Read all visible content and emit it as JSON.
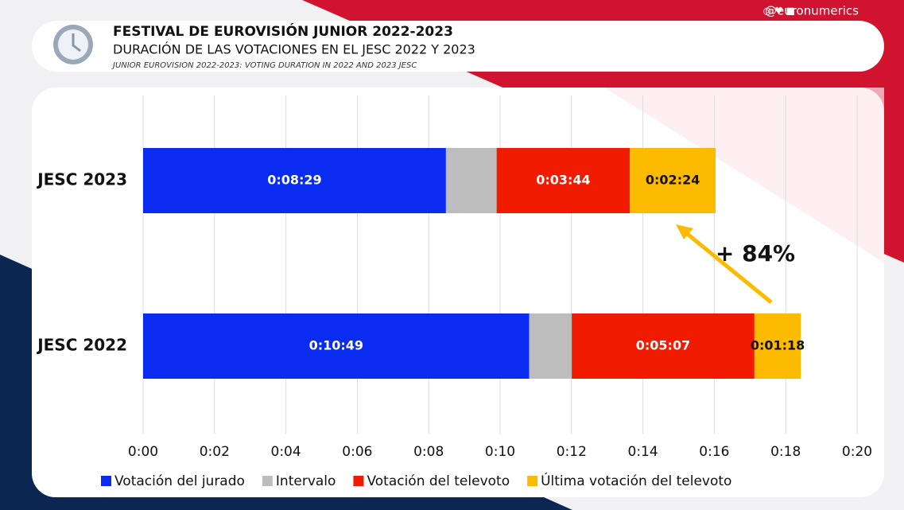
{
  "chart_data": {
    "type": "stacked_barh",
    "title": "FESTIVAL DE EUROVISIÓN JUNIOR 2022-2023",
    "subtitle": "DURACIÓN DE LAS VOTACIONES EN EL JESC 2022 Y 2023",
    "note": "JUNIOR EUROVISION 2022-2023: VOTING DURATION IN 2022 AND 2023 JESC",
    "handle": "@euronumerics",
    "annotation": "+ 84%",
    "categories": [
      "JESC 2023",
      "JESC 2022"
    ],
    "series": [
      {
        "name": "Votación del jurado",
        "color": "#0a2cf0",
        "values": [
          8.483,
          10.817
        ],
        "value_labels": [
          "0:08:29",
          "0:10:49"
        ]
      },
      {
        "name": "Intervalo",
        "color": "#bdbdbd",
        "values": [
          1.42,
          1.19
        ]
      },
      {
        "name": "Votación del televoto",
        "color": "#f01b00",
        "values": [
          3.733,
          5.117
        ],
        "value_labels": [
          "0:03:44",
          "0:05:07"
        ]
      },
      {
        "name": "Última votación del televoto",
        "color": "#fdbb00",
        "values": [
          2.4,
          1.3
        ],
        "value_labels": [
          "0:02:24",
          "0:01:18"
        ]
      }
    ],
    "xlim": [
      0,
      20
    ],
    "xticks": [
      {
        "value": 0,
        "label": "0:00"
      },
      {
        "value": 2,
        "label": "0:02"
      },
      {
        "value": 4,
        "label": "0:04"
      },
      {
        "value": 6,
        "label": "0:06"
      },
      {
        "value": 8,
        "label": "0:08"
      },
      {
        "value": 10,
        "label": "0:10"
      },
      {
        "value": 12,
        "label": "0:12"
      },
      {
        "value": 14,
        "label": "0:14"
      },
      {
        "value": 16,
        "label": "0:16"
      },
      {
        "value": 18,
        "label": "0:18"
      },
      {
        "value": 20,
        "label": "0:20"
      }
    ],
    "grid": true,
    "legend": "bottom"
  }
}
